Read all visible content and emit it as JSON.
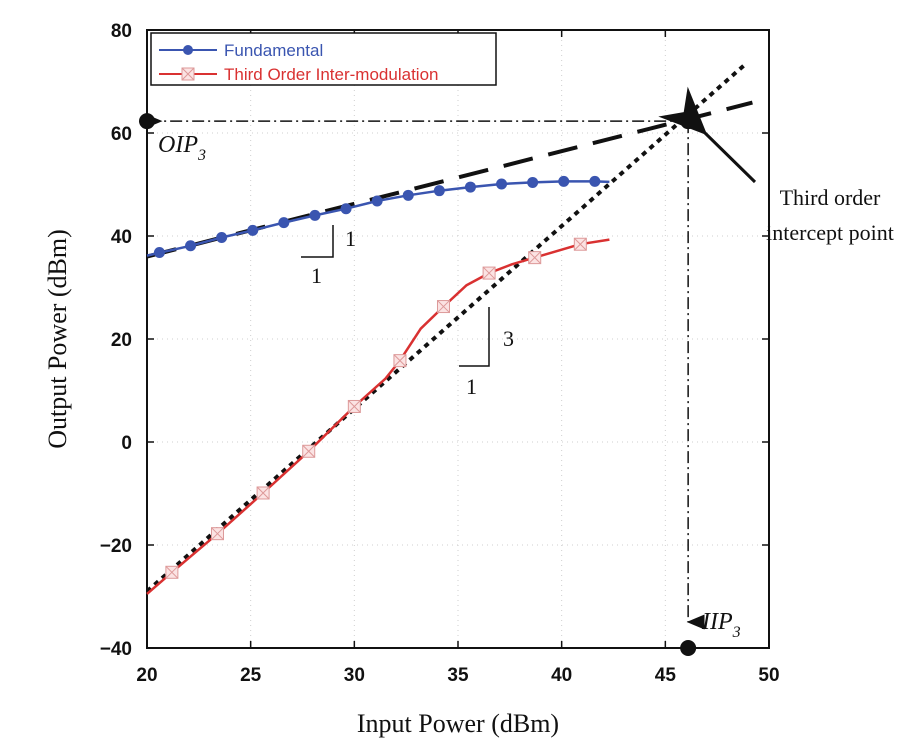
{
  "chart_data": {
    "type": "line",
    "xlabel": "Input Power (dBm)",
    "ylabel": "Output Power (dBm)",
    "xlim": [
      20,
      50
    ],
    "ylim": [
      -40,
      80
    ],
    "xticks": [
      20,
      25,
      30,
      35,
      40,
      45,
      50
    ],
    "yticks": [
      -40,
      -20,
      0,
      20,
      40,
      60,
      80
    ],
    "xtick_labels": [
      "20",
      "25",
      "30",
      "35",
      "40",
      "45",
      "50"
    ],
    "ytick_labels": [
      "−40",
      "−20",
      "0",
      "20",
      "40",
      "60",
      "80"
    ],
    "grid": true,
    "legend_position": "top-left",
    "series": [
      {
        "name": "Fundamental",
        "color": "#3a55b0",
        "marker": "circle",
        "x": [
          20.6,
          22.1,
          23.6,
          25.1,
          26.6,
          28.1,
          29.6,
          31.1,
          32.6,
          34.1,
          35.6,
          37.1,
          38.6,
          40.1,
          41.6
        ],
        "y": [
          36.8,
          38.1,
          39.7,
          41.1,
          42.6,
          44.0,
          45.3,
          46.8,
          47.9,
          48.8,
          49.5,
          50.1,
          50.4,
          50.6,
          50.6
        ],
        "line_x": [
          20.0,
          22.1,
          23.6,
          25.1,
          26.6,
          28.1,
          29.6,
          31.1,
          32.6,
          34.1,
          35.6,
          37.1,
          38.6,
          40.1,
          41.6,
          42.3
        ],
        "line_y": [
          36.2,
          38.1,
          39.7,
          41.1,
          42.6,
          44.0,
          45.3,
          46.8,
          47.9,
          48.8,
          49.5,
          50.1,
          50.4,
          50.6,
          50.6,
          50.5
        ]
      },
      {
        "name": "Third Order Inter-modulation",
        "color": "#d93131",
        "marker": "boxed-x",
        "x": [
          21.2,
          23.4,
          25.6,
          27.8,
          30.0,
          32.2,
          34.3,
          36.5,
          38.7,
          40.9
        ],
        "y": [
          -25.3,
          -17.8,
          -9.9,
          -1.8,
          6.9,
          15.8,
          26.3,
          32.8,
          35.8,
          38.4
        ],
        "line_x": [
          20.0,
          21.2,
          23.4,
          25.6,
          27.8,
          30.0,
          31.5,
          32.2,
          33.2,
          34.3,
          35.4,
          36.5,
          37.6,
          38.7,
          40.9,
          42.3
        ],
        "line_y": [
          -29.5,
          -25.3,
          -17.8,
          -9.9,
          -1.8,
          6.9,
          12.3,
          15.8,
          22.0,
          26.3,
          30.4,
          32.8,
          34.5,
          35.8,
          38.4,
          39.3
        ]
      }
    ],
    "extrapolations": [
      {
        "slope_label": "1",
        "x": [
          20.0,
          49.2
        ],
        "y": [
          36.0,
          65.9
        ]
      },
      {
        "slope_label": "3",
        "x": [
          20.0,
          48.9
        ],
        "y": [
          -29.0,
          73.5
        ]
      }
    ],
    "intercept": {
      "x": 46.1,
      "y": 62.3
    },
    "annotations": {
      "oip3": "OIP",
      "oip3_sub": "3",
      "iip3": "IIP",
      "iip3_sub": "3",
      "third_order_line1": "Third order",
      "third_order_line2": "intercept point",
      "slope_fund_rise": "1",
      "slope_fund_run": "1",
      "slope_im3_rise": "3",
      "slope_im3_run": "1"
    }
  }
}
